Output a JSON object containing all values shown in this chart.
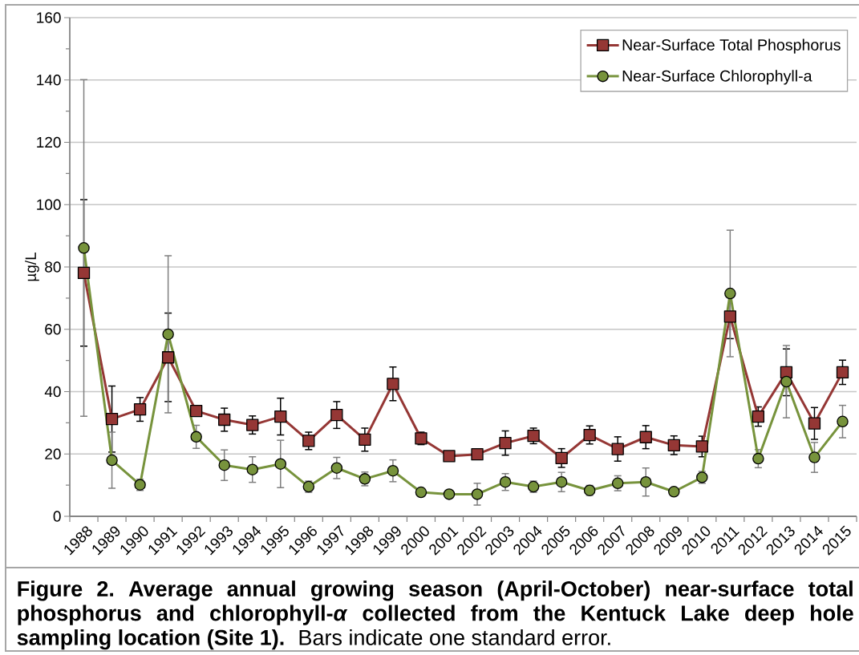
{
  "chart_data": {
    "type": "line",
    "title": "Figure 2. Average annual growing season (April-October) near-surface total phosphorus and chlorophyll-*α* collected from the Kentuck Lake deep hole sampling location (Site 1).",
    "annotations": [
      "Bars indicate one standard error."
    ],
    "ylabel": "µg/L",
    "categories": [
      "1988",
      "1989",
      "1990",
      "1991",
      "1992",
      "1993",
      "1994",
      "1995",
      "1996",
      "1997",
      "1998",
      "1999",
      "2000",
      "2001",
      "2002",
      "2003",
      "2004",
      "2005",
      "2006",
      "2007",
      "2008",
      "2009",
      "2010",
      "2011",
      "2012",
      "2013",
      "2014",
      "2015"
    ],
    "ylim": [
      0,
      160
    ],
    "yticks": [
      0,
      20,
      40,
      60,
      80,
      100,
      120,
      140,
      160
    ],
    "grid": "y",
    "legend": "top right",
    "series": [
      {
        "name": "Near-Surface Total Phosphorus",
        "color": "#953735",
        "marker": "square",
        "values": [
          78.1,
          31.2,
          34.3,
          51.0,
          33.8,
          31.0,
          29.3,
          32.0,
          24.2,
          32.5,
          24.6,
          42.5,
          25.0,
          19.3,
          19.9,
          23.5,
          25.8,
          18.7,
          26.1,
          21.6,
          25.4,
          22.8,
          22.4,
          64.1,
          32.0,
          46.2,
          29.8,
          46.2
        ],
        "errors": [
          23.5,
          10.6,
          3.8,
          14.2,
          1.2,
          3.7,
          2.9,
          5.9,
          2.8,
          4.3,
          3.7,
          5.4,
          2.0,
          null,
          null,
          3.9,
          2.5,
          3.0,
          2.9,
          3.9,
          3.7,
          3.0,
          3.3,
          7.1,
          3.1,
          7.5,
          5.1,
          3.9
        ]
      },
      {
        "name": "Near-Surface Chlorophyll-a",
        "color": "#77933C",
        "marker": "circle",
        "values": [
          86.1,
          18.0,
          10.1,
          58.4,
          25.5,
          16.4,
          15.0,
          16.8,
          9.5,
          15.5,
          12.0,
          14.6,
          7.7,
          7.1,
          7.1,
          11.0,
          9.5,
          11.0,
          8.3,
          10.6,
          11.0,
          7.9,
          12.5,
          71.5,
          18.5,
          43.2,
          18.9,
          30.4
        ],
        "errors": [
          54.0,
          9.0,
          1.8,
          25.2,
          3.7,
          4.9,
          4.1,
          7.6,
          1.8,
          3.4,
          2.2,
          3.5,
          null,
          null,
          3.5,
          2.7,
          1.8,
          3.1,
          1.6,
          2.4,
          4.5,
          null,
          1.9,
          20.3,
          2.9,
          11.6,
          4.8,
          5.2
        ]
      }
    ]
  }
}
